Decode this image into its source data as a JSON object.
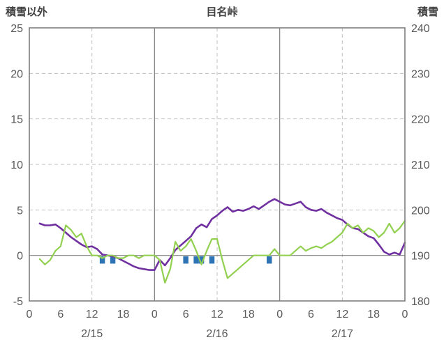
{
  "header": {
    "left_axis_title": "積雪以外",
    "title": "目名峠",
    "right_axis_title": "積雪"
  },
  "colors": {
    "purple_line": "#7030A0",
    "green_line": "#92D050",
    "blue_marker": "#2E74B5",
    "grid_dashed": "#BFBFBF",
    "grid_solid": "#808080",
    "border": "#7F7F7F",
    "tick_text": "#595959",
    "header_text": "#404040"
  },
  "chart_data": {
    "type": "line",
    "title": "目名峠",
    "left_axis": {
      "label": "積雪以外",
      "min": -5,
      "max": 25,
      "ticks": [
        25,
        20,
        15,
        10,
        5,
        0,
        -5
      ]
    },
    "right_axis": {
      "label": "積雪",
      "min": 180,
      "max": 240,
      "ticks": [
        240,
        230,
        220,
        210,
        200,
        190,
        180
      ]
    },
    "x_axis": {
      "unit": "hour",
      "range": [
        0,
        72
      ],
      "tick_step_hours": 6,
      "tick_labels": [
        "0",
        "6",
        "12",
        "18",
        "0",
        "6",
        "12",
        "18",
        "0",
        "6",
        "12",
        "18",
        "0"
      ],
      "day_labels": [
        "2/15",
        "2/16",
        "2/17"
      ],
      "day_center_hours": [
        12,
        36,
        60
      ]
    },
    "gridlines": {
      "horizontal_dashed": [
        20,
        15,
        10,
        5
      ],
      "horizontal_solid": [
        0
      ],
      "vertical_dashed_hours": [
        12,
        36,
        60
      ],
      "vertical_solid_hours": [
        24,
        48
      ]
    },
    "series": [
      {
        "name": "purple-line",
        "axis": "left",
        "color": "#7030A0",
        "width": 2.6,
        "points": [
          [
            2,
            3.5
          ],
          [
            3,
            3.3
          ],
          [
            4,
            3.3
          ],
          [
            5,
            3.4
          ],
          [
            6,
            3.0
          ],
          [
            7,
            2.5
          ],
          [
            8,
            2.0
          ],
          [
            9,
            1.6
          ],
          [
            10,
            1.2
          ],
          [
            11,
            0.9
          ],
          [
            12,
            1.0
          ],
          [
            13,
            0.7
          ],
          [
            14,
            0.1
          ],
          [
            15,
            0.0
          ],
          [
            16,
            -0.1
          ],
          [
            17,
            -0.3
          ],
          [
            18,
            -0.6
          ],
          [
            19,
            -0.9
          ],
          [
            20,
            -1.2
          ],
          [
            21,
            -1.4
          ],
          [
            22,
            -1.5
          ],
          [
            23,
            -1.6
          ],
          [
            24,
            -1.6
          ],
          [
            25,
            -0.5
          ],
          [
            26,
            -1.1
          ],
          [
            27,
            -0.3
          ],
          [
            28,
            0.6
          ],
          [
            29,
            1.1
          ],
          [
            30,
            1.6
          ],
          [
            31,
            2.1
          ],
          [
            32,
            3.0
          ],
          [
            33,
            3.4
          ],
          [
            34,
            3.1
          ],
          [
            35,
            4.0
          ],
          [
            36,
            4.4
          ],
          [
            37,
            4.9
          ],
          [
            38,
            5.3
          ],
          [
            39,
            4.8
          ],
          [
            40,
            5.0
          ],
          [
            41,
            4.9
          ],
          [
            42,
            5.1
          ],
          [
            43,
            5.4
          ],
          [
            44,
            5.1
          ],
          [
            45,
            5.5
          ],
          [
            46,
            5.9
          ],
          [
            47,
            6.2
          ],
          [
            48,
            5.9
          ],
          [
            49,
            5.6
          ],
          [
            50,
            5.5
          ],
          [
            51,
            5.7
          ],
          [
            52,
            5.9
          ],
          [
            53,
            5.3
          ],
          [
            54,
            5.0
          ],
          [
            55,
            4.9
          ],
          [
            56,
            5.1
          ],
          [
            57,
            4.7
          ],
          [
            58,
            4.4
          ],
          [
            59,
            4.1
          ],
          [
            60,
            3.9
          ],
          [
            61,
            3.4
          ],
          [
            62,
            3.0
          ],
          [
            63,
            2.9
          ],
          [
            64,
            2.5
          ],
          [
            65,
            2.1
          ],
          [
            66,
            1.9
          ],
          [
            67,
            1.2
          ],
          [
            68,
            0.4
          ],
          [
            69,
            0.1
          ],
          [
            70,
            0.3
          ],
          [
            71,
            0.1
          ],
          [
            72,
            1.4
          ]
        ]
      },
      {
        "name": "green-line",
        "axis": "right",
        "color": "#92D050",
        "width": 2.2,
        "points": [
          [
            2,
            189.2
          ],
          [
            3,
            188.0
          ],
          [
            4,
            189.0
          ],
          [
            5,
            191.0
          ],
          [
            6,
            192.0
          ],
          [
            7,
            196.6
          ],
          [
            8,
            195.6
          ],
          [
            9,
            194.0
          ],
          [
            10,
            194.8
          ],
          [
            11,
            192.0
          ],
          [
            12,
            190.0
          ],
          [
            13,
            190.0
          ],
          [
            14,
            189.4
          ],
          [
            15,
            190.0
          ],
          [
            16,
            190.0
          ],
          [
            17,
            189.4
          ],
          [
            18,
            189.4
          ],
          [
            19,
            190.0
          ],
          [
            20,
            190.0
          ],
          [
            21,
            189.4
          ],
          [
            22,
            190.0
          ],
          [
            23,
            190.0
          ],
          [
            24,
            190.0
          ],
          [
            25,
            189.0
          ],
          [
            26,
            184.0
          ],
          [
            27,
            187.0
          ],
          [
            28,
            193.0
          ],
          [
            29,
            191.0
          ],
          [
            30,
            192.0
          ],
          [
            31,
            193.6
          ],
          [
            32,
            191.0
          ],
          [
            33,
            188.0
          ],
          [
            34,
            191.0
          ],
          [
            35,
            193.6
          ],
          [
            36,
            193.6
          ],
          [
            37,
            189.0
          ],
          [
            38,
            185.0
          ],
          [
            39,
            186.0
          ],
          [
            40,
            187.0
          ],
          [
            41,
            188.0
          ],
          [
            42,
            189.0
          ],
          [
            43,
            190.0
          ],
          [
            44,
            190.0
          ],
          [
            45,
            190.0
          ],
          [
            46,
            190.0
          ],
          [
            47,
            191.4
          ],
          [
            48,
            190.0
          ],
          [
            49,
            190.0
          ],
          [
            50,
            190.0
          ],
          [
            51,
            191.0
          ],
          [
            52,
            192.0
          ],
          [
            53,
            191.0
          ],
          [
            54,
            191.6
          ],
          [
            55,
            192.0
          ],
          [
            56,
            191.6
          ],
          [
            57,
            192.4
          ],
          [
            58,
            193.0
          ],
          [
            59,
            194.0
          ],
          [
            60,
            195.0
          ],
          [
            61,
            197.0
          ],
          [
            62,
            196.0
          ],
          [
            63,
            196.6
          ],
          [
            64,
            195.0
          ],
          [
            65,
            196.0
          ],
          [
            66,
            195.4
          ],
          [
            67,
            194.0
          ],
          [
            68,
            195.0
          ],
          [
            69,
            197.0
          ],
          [
            70,
            195.0
          ],
          [
            71,
            196.0
          ],
          [
            72,
            197.6
          ]
        ]
      }
    ],
    "bars": {
      "name": "blue-markers",
      "axis": "left",
      "color": "#2E74B5",
      "top_value": -0.1,
      "bottom_value": -0.9,
      "hours": [
        14,
        16,
        30,
        32,
        33,
        35,
        46
      ]
    },
    "layout": {
      "plot_left": 42,
      "plot_right": 580,
      "plot_top": 40,
      "plot_bottom": 432
    }
  }
}
